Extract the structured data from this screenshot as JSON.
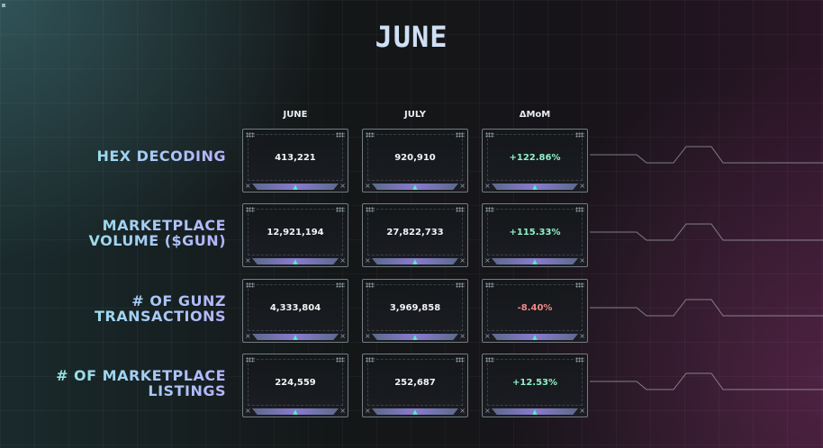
{
  "title": "JUNE",
  "columns": [
    "JUNE",
    "JULY",
    "ΔMoM"
  ],
  "rows": [
    {
      "label_lines": [
        "HEX DECODING"
      ],
      "june": "413,221",
      "july": "920,910",
      "mom": "+122.86%",
      "mom_sign": "pos"
    },
    {
      "label_lines": [
        "MARKETPLACE",
        "VOLUME ($GUN)"
      ],
      "june": "12,921,194",
      "july": "27,822,733",
      "mom": "+115.33%",
      "mom_sign": "pos"
    },
    {
      "label_lines": [
        "# OF GUNZ",
        "TRANSACTIONS"
      ],
      "june": "4,333,804",
      "july": "3,969,858",
      "mom": "-8.40%",
      "mom_sign": "neg"
    },
    {
      "label_lines": [
        "# OF MARKETPLACE",
        "LISTINGS"
      ],
      "june": "224,559",
      "july": "252,687",
      "mom": "+12.53%",
      "mom_sign": "pos"
    }
  ],
  "colors": {
    "positive": "#8ff0c8",
    "negative": "#f08a8a",
    "label_gradient_start": "#8ff0d6",
    "label_gradient_end": "#b6b4ff"
  }
}
